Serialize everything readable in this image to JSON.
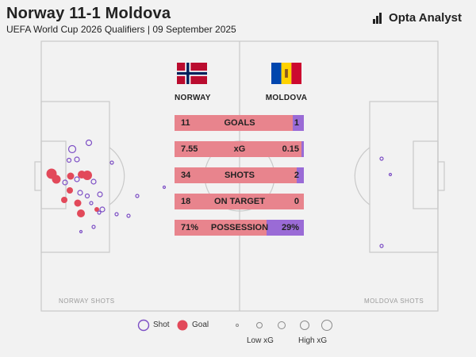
{
  "header": {
    "title": "Norway 11-1 Moldova",
    "subtitle": "UEFA World Cup 2026 Qualifiers | 09 September 2025",
    "brand": "Opta Analyst"
  },
  "teams": {
    "home": {
      "name": "NORWAY",
      "flag_colors": [
        "#ba0c2f",
        "#ffffff",
        "#00205b"
      ]
    },
    "away": {
      "name": "MOLDOVA",
      "flag_colors": [
        "#0046ae",
        "#ffd200",
        "#cc092f"
      ]
    }
  },
  "pitch_labels": {
    "home": "NORWAY SHOTS",
    "away": "MOLDOVA SHOTS"
  },
  "legend": {
    "shot": "Shot",
    "goal": "Goal",
    "low_xg": "Low xG",
    "high_xg": "High xG"
  },
  "colors": {
    "home_bar": "#e8848d",
    "away_bar": "#9a6bd6",
    "shot": "#7d4fc5",
    "goal": "#e2495a",
    "pitch_line": "#c9c9c9"
  },
  "chart_data": {
    "type": "table",
    "stats": [
      {
        "label": "GOALS",
        "home": "11",
        "away": "1",
        "home_share": 0.917
      },
      {
        "label": "xG",
        "home": "7.55",
        "away": "0.15",
        "home_share": 0.981
      },
      {
        "label": "SHOTS",
        "home": "34",
        "away": "2",
        "home_share": 0.944
      },
      {
        "label": "ON TARGET",
        "home": "18",
        "away": "0",
        "home_share": 1.0
      },
      {
        "label": "POSSESSION",
        "home": "71%",
        "away": "29%",
        "home_share": 0.71
      }
    ]
  }
}
